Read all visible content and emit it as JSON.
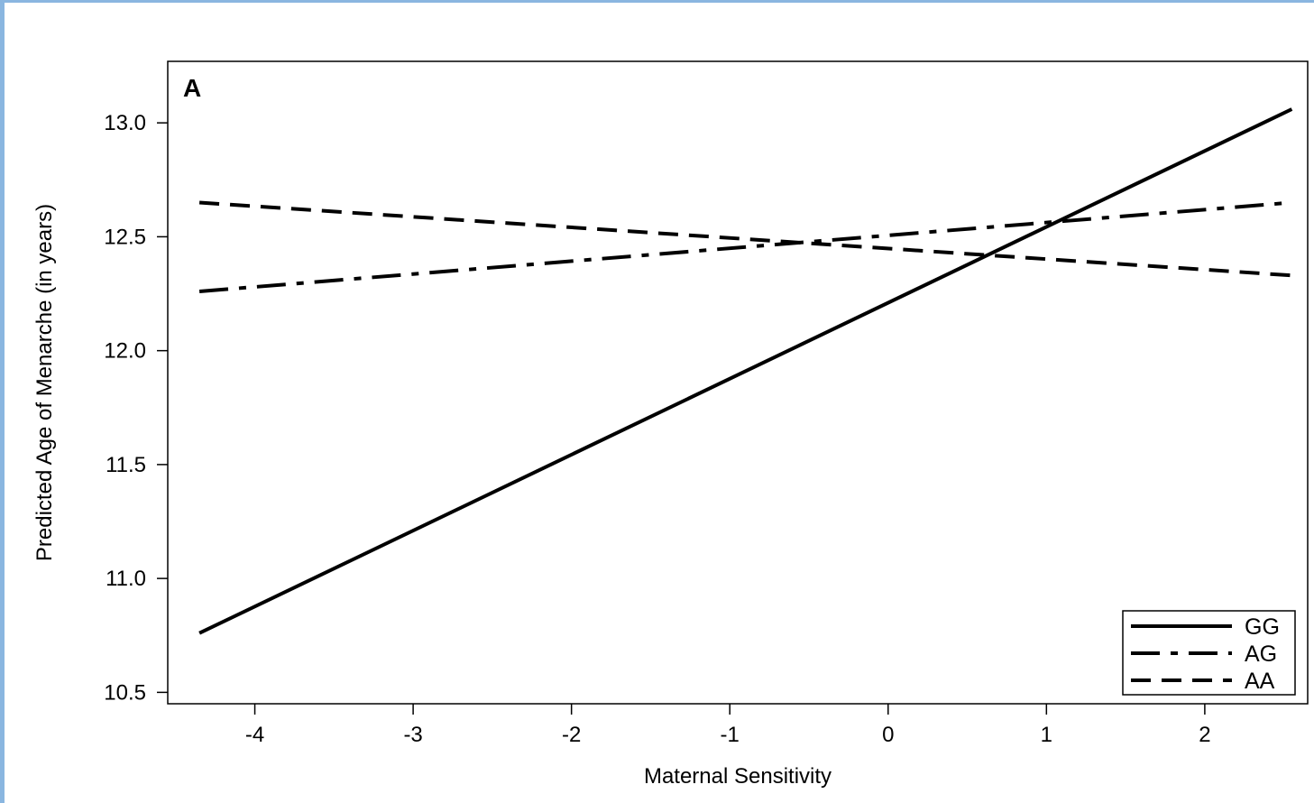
{
  "frame": {
    "border_color": "#8ab6e0"
  },
  "chart_data": {
    "type": "line",
    "panel_label": "A",
    "xlabel": "Maternal Sensitivity",
    "ylabel": "Predicted Age of Menarche (in years)",
    "xlim": [
      -4.55,
      2.65
    ],
    "ylim": [
      10.45,
      13.27
    ],
    "x_ticks": [
      -4,
      -3,
      -2,
      -1,
      0,
      1,
      2
    ],
    "x_tick_labels": [
      "-4",
      "-3",
      "-2",
      "-1",
      "0",
      "1",
      "2"
    ],
    "y_ticks": [
      10.5,
      11.0,
      11.5,
      12.0,
      12.5,
      13.0
    ],
    "y_tick_labels": [
      "10.5",
      "11.0",
      "11.5",
      "12.0",
      "12.5",
      "13.0"
    ],
    "grid": false,
    "legend_position": "bottom-right",
    "series": [
      {
        "name": "GG",
        "style": "solid",
        "color": "#000000",
        "x": [
          -4.35,
          2.55
        ],
        "y": [
          10.76,
          13.06
        ]
      },
      {
        "name": "AG",
        "style": "dash-dot",
        "color": "#000000",
        "x": [
          -4.35,
          2.55
        ],
        "y": [
          12.26,
          12.65
        ]
      },
      {
        "name": "AA",
        "style": "dashed",
        "color": "#000000",
        "x": [
          -4.35,
          2.55
        ],
        "y": [
          12.65,
          12.33
        ]
      }
    ]
  }
}
